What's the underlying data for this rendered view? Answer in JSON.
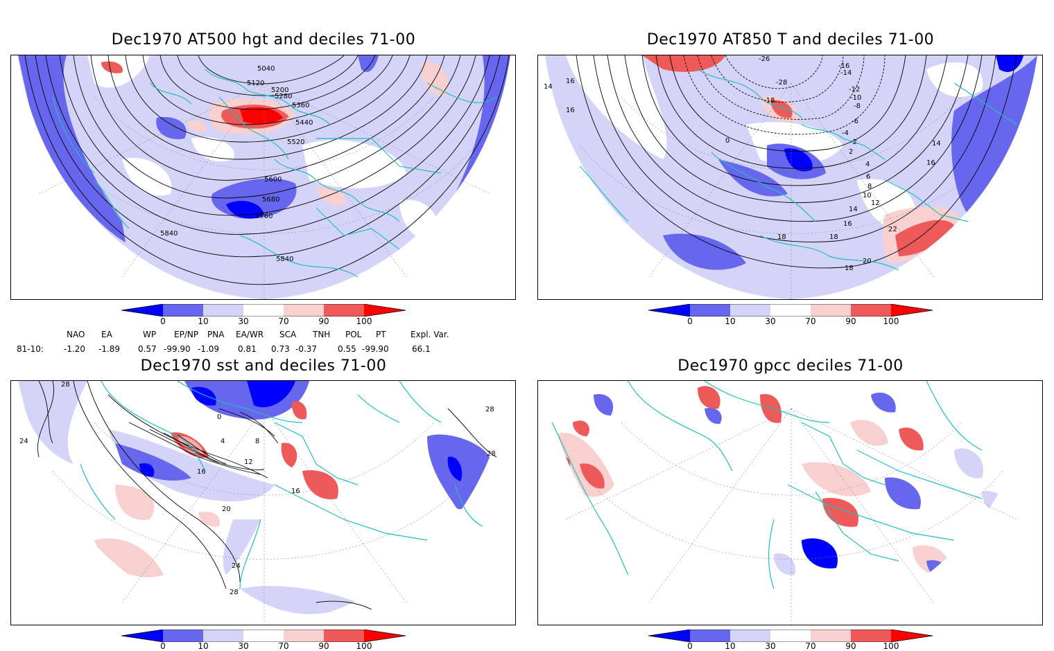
{
  "panels": [
    {
      "id": "p1",
      "title": "Dec1970 AT500 hgt and deciles 71-00",
      "contour_labels": [
        "5040",
        "5120",
        "5200",
        "5280",
        "5360",
        "5440",
        "5520",
        "5600",
        "5680",
        "5760",
        "5840",
        "5840"
      ]
    },
    {
      "id": "p2",
      "title": "Dec1970 AT850 T and deciles 71-00",
      "contour_labels": [
        "-26",
        "-28",
        "-18",
        "-16",
        "-14",
        "-12",
        "-10",
        "-8",
        "-6",
        "-4",
        "-2",
        "0",
        "2",
        "4",
        "6",
        "8",
        "10",
        "12",
        "14",
        "16",
        "18",
        "20",
        "22",
        "14",
        "16",
        "16",
        "18",
        "18",
        "16",
        "14"
      ]
    },
    {
      "id": "p3",
      "title": "Dec1970 sst and deciles 71-00",
      "contour_labels": [
        "28",
        "24",
        "0",
        "4",
        "8",
        "12",
        "16",
        "16",
        "20",
        "24",
        "28",
        "28",
        "28"
      ]
    },
    {
      "id": "p4",
      "title": "Dec1970 gpcc deciles 71-00",
      "contour_labels": []
    }
  ],
  "colorbar": {
    "tick_labels": [
      "0",
      "10",
      "30",
      "70",
      "90",
      "100"
    ],
    "colors": [
      "#0000ff",
      "#6666ee",
      "#d4d4f8",
      "#ffffff",
      "#f8d0d0",
      "#ee5a5a",
      "#ff0000"
    ]
  },
  "teleconnections": {
    "headers": [
      "NAO",
      "EA",
      "WP",
      "EP/NP",
      "PNA",
      "EA/WR",
      "SCA",
      "TNH",
      "POL",
      "PT",
      "Expl. Var."
    ],
    "row_label": "81-10:",
    "values": [
      "-1.20",
      "-1.89",
      "0.57",
      "-99.90",
      "-1.09",
      "0.81",
      "0.73",
      "-0.37",
      "0.55",
      "-99.90",
      "66.1"
    ]
  }
}
